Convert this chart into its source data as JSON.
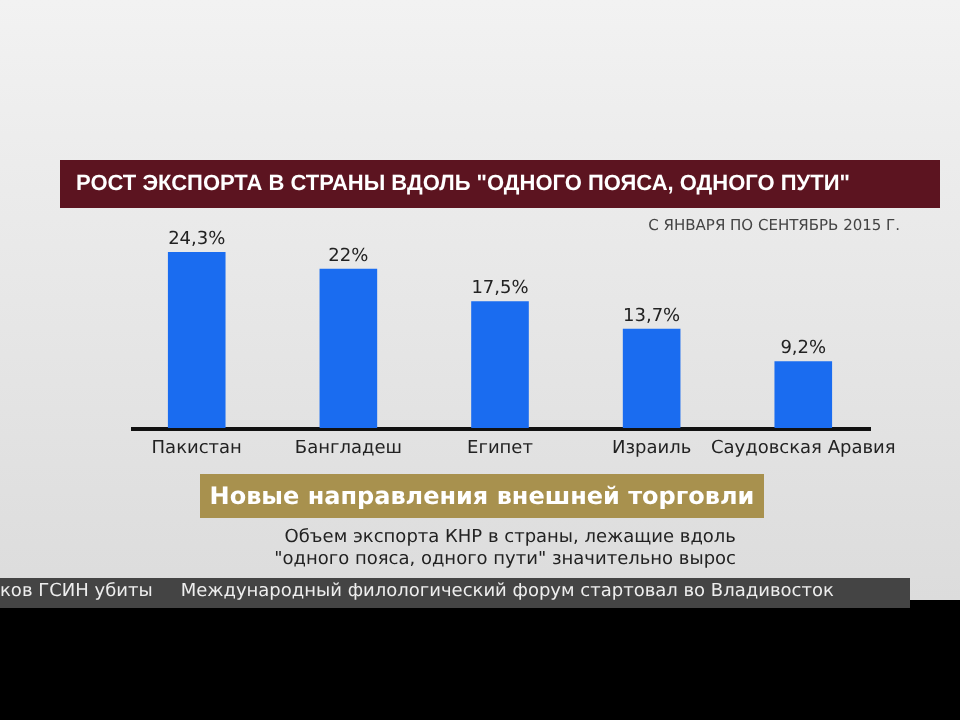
{
  "chart_data": {
    "type": "bar",
    "title": "РОСТ ЭКСПОРТА В СТРАНЫ ВДОЛЬ \"ОДНОГО ПОЯСА, ОДНОГО ПУТИ\"",
    "subtitle": "С ЯНВАРЯ ПО СЕНТЯБРЬ 2015 Г.",
    "categories": [
      "Пакистан",
      "Бангладеш",
      "Египет",
      "Израиль",
      "Саудовская Аравия"
    ],
    "values": [
      24.3,
      22,
      17.5,
      13.7,
      9.2
    ],
    "value_labels": [
      "24,3%",
      "22%",
      "17,5%",
      "13,7%",
      "9,2%"
    ],
    "color": "#1a6cf0",
    "annotations": [
      "Новые направления внешней торговли",
      "Объем экспорта КНР в страны, лежащие вдоль \"одного пояса, одного пути\" значительно вырос",
      "ков ГСИН убиты",
      "Международный филологический форум стартовал во Владивосток"
    ]
  }
}
